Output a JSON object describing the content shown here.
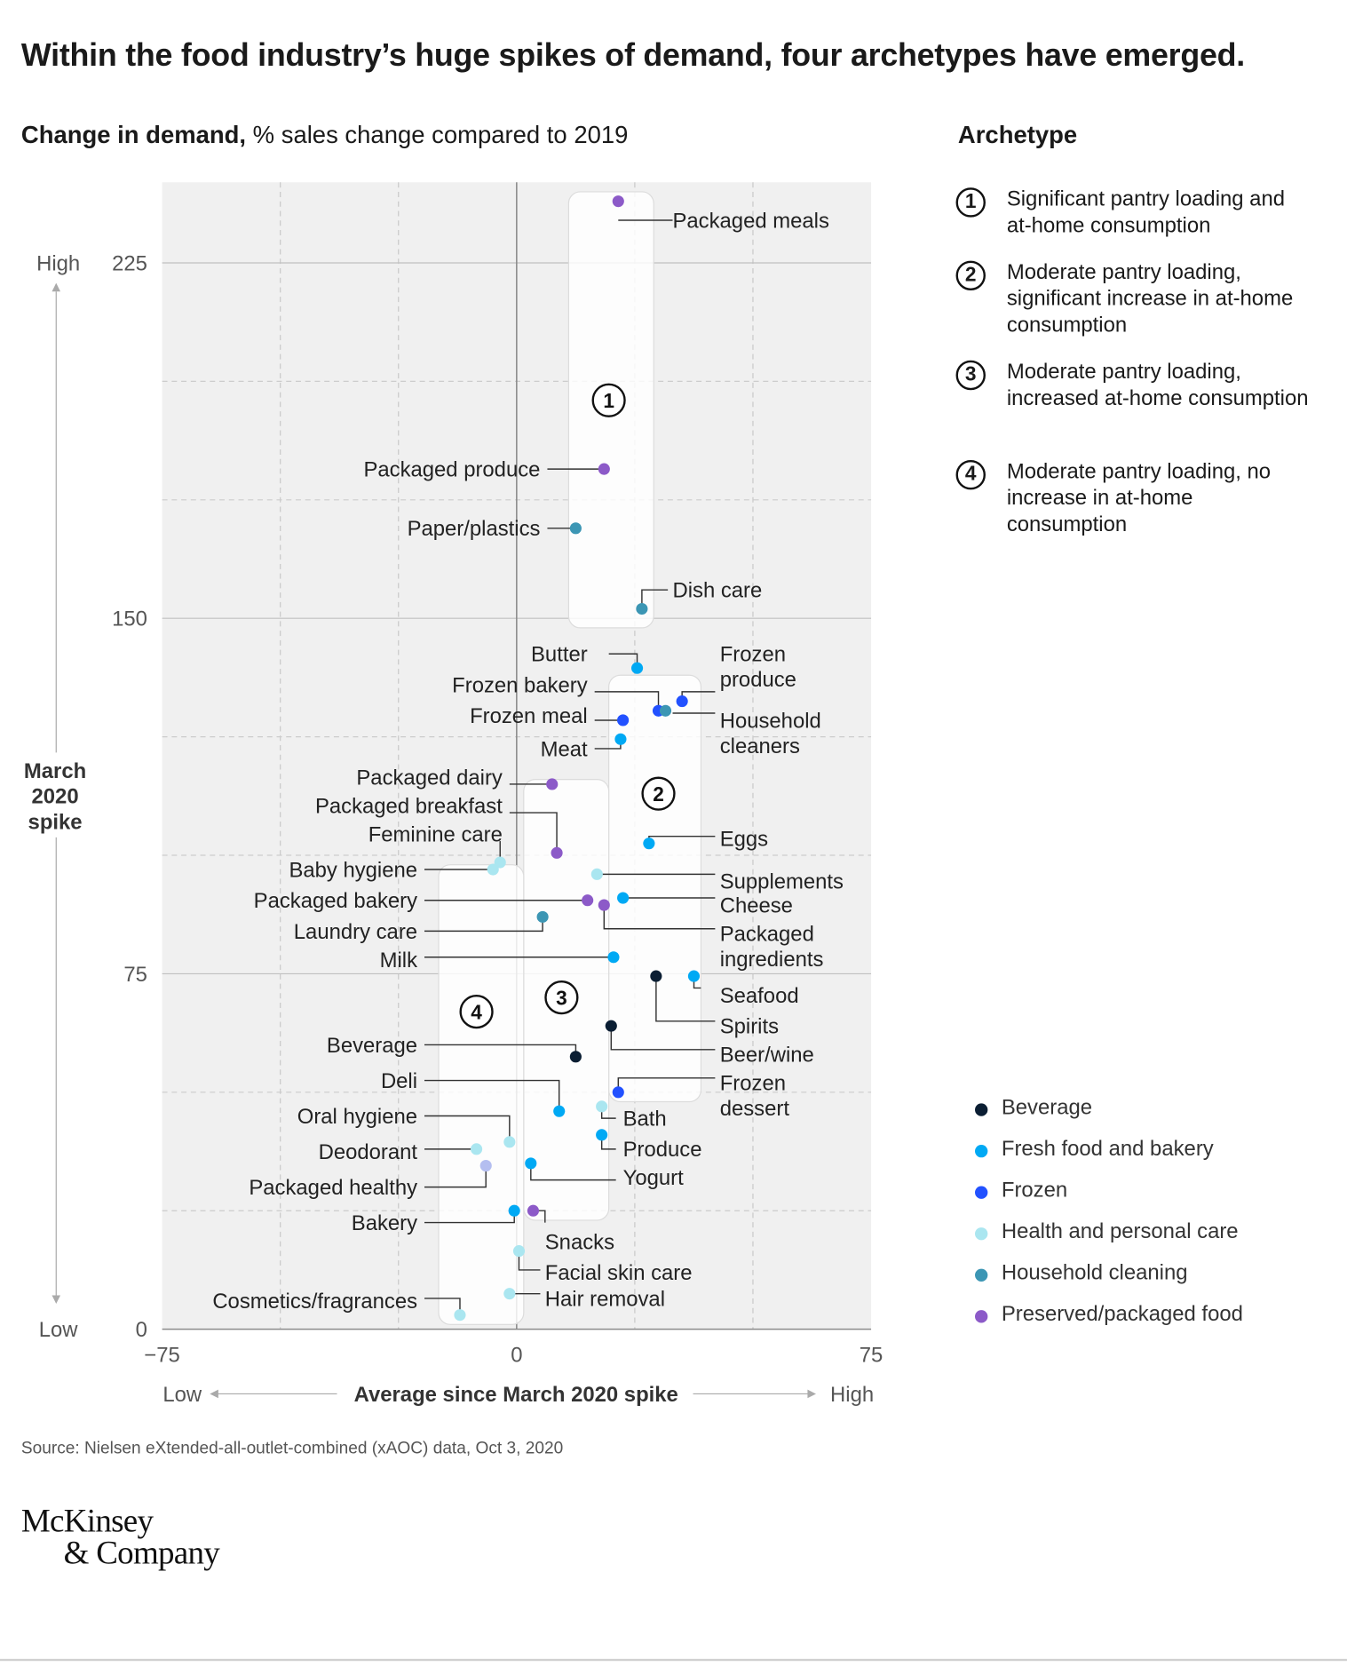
{
  "title": "Within the food industry’s huge spikes of demand, four archetypes have emerged.",
  "subtitle_bold": "Change in demand,",
  "subtitle_rest": " % sales change compared to 2019",
  "legend_archetype_title": "Archetype",
  "archetypes": [
    {
      "num": "1",
      "text": "Significant pantry loading and at-home consumption"
    },
    {
      "num": "2",
      "text": "Moderate pantry loading, significant increase in at-home consumption"
    },
    {
      "num": "3",
      "text": "Moderate pantry loading, increased at-home consumption"
    },
    {
      "num": "4",
      "text": "Moderate pantry loading, no increase in at-home consumption"
    }
  ],
  "categories": [
    {
      "name": "Beverage",
      "color": "#0b1e33"
    },
    {
      "name": "Fresh food and bakery",
      "color": "#00a9f4"
    },
    {
      "name": "Frozen",
      "color": "#2251ff"
    },
    {
      "name": "Health and personal care",
      "color": "#aae6f0"
    },
    {
      "name": "Household cleaning",
      "color": "#3c96b4"
    },
    {
      "name": "Preserved/packaged food",
      "color": "#8c5ac8"
    }
  ],
  "source": "Source: Nielsen eXtended-all-outlet-combined (xAOC) data, Oct 3, 2020",
  "logo_line1": "McKinsey",
  "logo_line2": "& Company",
  "chart_data": {
    "type": "scatter",
    "title": "Within the food industry’s huge spikes of demand, four archetypes have emerged.",
    "xlabel": "Average since March 2020 spike",
    "ylabel": "March 2020 spike",
    "x_low_label": "Low",
    "x_high_label": "High",
    "y_low_label": "Low",
    "y_high_label": "High",
    "xlim": [
      -75,
      75
    ],
    "ylim": [
      0,
      242
    ],
    "x_ticks": [
      -75,
      0,
      75
    ],
    "x_tick_labels": [
      "−75",
      "0",
      "75"
    ],
    "y_ticks": [
      0,
      75,
      150,
      225
    ],
    "y_tick_labels": [
      "0",
      "75",
      "150",
      "225"
    ],
    "grid": true,
    "legend": "right",
    "zones": [
      {
        "label": "1",
        "x0": 11,
        "x1": 29,
        "y0": 148,
        "y1": 240,
        "label_x": 19.5,
        "label_y": 196
      },
      {
        "label": "2",
        "x0": 19.5,
        "x1": 39,
        "y0": 48,
        "y1": 138,
        "label_x": 30,
        "label_y": 113
      },
      {
        "label": "3",
        "x0": 1.5,
        "x1": 19.5,
        "y0": 23,
        "y1": 116,
        "label_x": 9.5,
        "label_y": 70
      },
      {
        "label": "4",
        "x0": -16.5,
        "x1": 1.5,
        "y0": 1,
        "y1": 98,
        "label_x": -8.5,
        "label_y": 67
      }
    ],
    "points": [
      {
        "label": "Packaged meals",
        "x": 21.5,
        "y": 238,
        "cat": "Preserved/packaged food",
        "lx": 33,
        "ly": 234,
        "anchor": "start",
        "path": [
          [
            21.5,
            234
          ],
          [
            33,
            234
          ]
        ]
      },
      {
        "label": "Packaged produce",
        "x": 18.5,
        "y": 181.5,
        "cat": "Preserved/packaged food",
        "lx": 5,
        "ly": 181.5,
        "anchor": "end",
        "path": [
          [
            6.5,
            181.5
          ],
          [
            18.5,
            181.5
          ]
        ]
      },
      {
        "label": "Paper/plastics",
        "x": 12.5,
        "y": 169,
        "cat": "Household cleaning",
        "lx": 5,
        "ly": 169,
        "anchor": "end",
        "path": [
          [
            6.5,
            169
          ],
          [
            12.5,
            169
          ]
        ]
      },
      {
        "label": "Dish care",
        "x": 26.5,
        "y": 152,
        "cat": "Household cleaning",
        "lx": 33,
        "ly": 156,
        "anchor": "start",
        "path": [
          [
            26.5,
            152
          ],
          [
            26.5,
            156
          ],
          [
            32,
            156
          ]
        ]
      },
      {
        "label": "Butter",
        "x": 25.5,
        "y": 139.5,
        "cat": "Fresh food and bakery",
        "lx": 15,
        "ly": 142.5,
        "anchor": "end",
        "path": [
          [
            19.5,
            142.5
          ],
          [
            25.5,
            142.5
          ],
          [
            25.5,
            139.5
          ]
        ]
      },
      {
        "label": "Frozen produce",
        "x": 35,
        "y": 132.5,
        "cat": "Frozen",
        "lx": 43,
        "ly": 142.5,
        "anchor": "start",
        "path": [
          [
            35,
            132.5
          ],
          [
            35,
            134.5
          ],
          [
            42,
            134.5
          ]
        ]
      },
      {
        "label": "Frozen bakery",
        "x": 30,
        "y": 130.5,
        "cat": "Frozen",
        "lx": 15,
        "ly": 136,
        "anchor": "end",
        "path": [
          [
            16.5,
            134.5
          ],
          [
            30,
            134.5
          ],
          [
            30,
            130.5
          ]
        ]
      },
      {
        "label": "Household cleaners",
        "x": 31.5,
        "y": 130.5,
        "cat": "Household cleaning",
        "lx": 43,
        "ly": 128.5,
        "anchor": "start",
        "path": [
          [
            33,
            130
          ],
          [
            42,
            130
          ]
        ]
      },
      {
        "label": "Frozen meal",
        "x": 22.5,
        "y": 128.5,
        "cat": "Frozen",
        "lx": 15,
        "ly": 129.5,
        "anchor": "end",
        "path": [
          [
            16.5,
            128.5
          ],
          [
            22.5,
            128.5
          ]
        ]
      },
      {
        "label": "Meat",
        "x": 22,
        "y": 124.5,
        "cat": "Fresh food and bakery",
        "lx": 15,
        "ly": 122.5,
        "anchor": "end",
        "path": [
          [
            16.5,
            122.5
          ],
          [
            22,
            122.5
          ],
          [
            22,
            124.5
          ]
        ]
      },
      {
        "label": "Packaged dairy",
        "x": 7.5,
        "y": 115,
        "cat": "Preserved/packaged food",
        "lx": -3,
        "ly": 116.5,
        "anchor": "end",
        "path": [
          [
            -1.5,
            115
          ],
          [
            7.5,
            115
          ]
        ]
      },
      {
        "label": "Packaged breakfast",
        "x": 8.5,
        "y": 100.5,
        "cat": "Preserved/packaged food",
        "lx": -3,
        "ly": 110.5,
        "anchor": "end",
        "path": [
          [
            -1.5,
            109
          ],
          [
            2.5,
            109
          ],
          [
            2.5,
            109
          ],
          [
            8.5,
            109
          ],
          [
            8.5,
            100.5
          ]
        ]
      },
      {
        "label": "Eggs",
        "x": 28,
        "y": 102.5,
        "cat": "Fresh food and bakery",
        "lx": 43,
        "ly": 103.5,
        "anchor": "start",
        "path": [
          [
            28,
            102.5
          ],
          [
            28,
            104
          ],
          [
            42,
            104
          ]
        ]
      },
      {
        "label": "Feminine care",
        "x": -3.5,
        "y": 98.5,
        "cat": "Health and personal care",
        "lx": -3,
        "ly": 104.5,
        "anchor": "end",
        "path": [
          [
            -3.5,
            98.5
          ],
          [
            -3.5,
            103
          ]
        ]
      },
      {
        "label": "Baby hygiene",
        "x": -5,
        "y": 97,
        "cat": "Health and personal care",
        "lx": -21,
        "ly": 97,
        "anchor": "end",
        "path": [
          [
            -19.5,
            97
          ],
          [
            -5,
            97
          ]
        ]
      },
      {
        "label": "Supplements",
        "x": 17,
        "y": 96,
        "cat": "Health and personal care",
        "lx": 43,
        "ly": 94.5,
        "anchor": "start",
        "path": [
          [
            17,
            96
          ],
          [
            42,
            96
          ]
        ]
      },
      {
        "label": "Packaged bakery",
        "x": 15,
        "y": 90.5,
        "cat": "Preserved/packaged food",
        "lx": -21,
        "ly": 90.5,
        "anchor": "end",
        "path": [
          [
            -19.5,
            90.5
          ],
          [
            15,
            90.5
          ]
        ]
      },
      {
        "label": "Cheese",
        "x": 22.5,
        "y": 91,
        "cat": "Fresh food and bakery",
        "lx": 43,
        "ly": 89.5,
        "anchor": "start",
        "path": [
          [
            22.5,
            91
          ],
          [
            42,
            91
          ]
        ]
      },
      {
        "label": "Packaged ingredients",
        "x": 18.5,
        "y": 89.5,
        "cat": "Preserved/packaged food",
        "lx": 43,
        "ly": 83.5,
        "anchor": "start",
        "path": [
          [
            18.5,
            89.5
          ],
          [
            18.5,
            84.5
          ],
          [
            42,
            84.5
          ]
        ]
      },
      {
        "label": "Laundry care",
        "x": 5.5,
        "y": 87,
        "cat": "Household cleaning",
        "lx": -21,
        "ly": 84,
        "anchor": "end",
        "path": [
          [
            -19.5,
            84
          ],
          [
            5.5,
            84
          ],
          [
            5.5,
            87
          ]
        ]
      },
      {
        "label": "Milk",
        "x": 20.5,
        "y": 78.5,
        "cat": "Fresh food and bakery",
        "lx": -21,
        "ly": 78,
        "anchor": "end",
        "path": [
          [
            -19.5,
            78.5
          ],
          [
            20.5,
            78.5
          ]
        ]
      },
      {
        "label": "Spirits",
        "x": 29.5,
        "y": 74.5,
        "cat": "Beverage",
        "lx": 43,
        "ly": 64,
        "anchor": "start",
        "path": [
          [
            29.5,
            74.5
          ],
          [
            29.5,
            65
          ],
          [
            42,
            65
          ]
        ]
      },
      {
        "label": "Seafood",
        "x": 37.5,
        "y": 74.5,
        "cat": "Fresh food and bakery",
        "lx": 43,
        "ly": 70.5,
        "anchor": "start",
        "path": [
          [
            37.5,
            74.5
          ],
          [
            37.5,
            72
          ],
          [
            39,
            72
          ]
        ]
      },
      {
        "label": "Beer/wine",
        "x": 20,
        "y": 64,
        "cat": "Beverage",
        "lx": 43,
        "ly": 58,
        "anchor": "start",
        "path": [
          [
            20,
            64
          ],
          [
            20,
            59
          ],
          [
            42,
            59
          ]
        ]
      },
      {
        "label": "Beverage",
        "x": 12.5,
        "y": 57.5,
        "cat": "Beverage",
        "lx": -21,
        "ly": 60,
        "anchor": "end",
        "path": [
          [
            -19.5,
            60
          ],
          [
            12.5,
            60
          ],
          [
            12.5,
            57.5
          ]
        ]
      },
      {
        "label": "Deli",
        "x": 9,
        "y": 46,
        "cat": "Fresh food and bakery",
        "lx": -21,
        "ly": 52.5,
        "anchor": "end",
        "path": [
          [
            -19.5,
            52.5
          ],
          [
            9,
            52.5
          ],
          [
            9,
            46
          ]
        ]
      },
      {
        "label": "Frozen dessert",
        "x": 21.5,
        "y": 50,
        "cat": "Frozen",
        "lx": 43,
        "ly": 52,
        "anchor": "start",
        "path": [
          [
            21.5,
            50
          ],
          [
            21.5,
            53
          ],
          [
            42,
            53
          ]
        ]
      },
      {
        "label": "Bath",
        "x": 18,
        "y": 47,
        "cat": "Health and personal care",
        "lx": 22.5,
        "ly": 44.5,
        "anchor": "start",
        "path": [
          [
            18,
            47
          ],
          [
            18,
            44.5
          ],
          [
            21,
            44.5
          ]
        ]
      },
      {
        "label": "Oral hygiene",
        "x": -1.5,
        "y": 39.5,
        "cat": "Health and personal care",
        "lx": -21,
        "ly": 45,
        "anchor": "end",
        "path": [
          [
            -19.5,
            45
          ],
          [
            -1.5,
            45
          ],
          [
            -1.5,
            39.5
          ]
        ]
      },
      {
        "label": "Produce",
        "x": 18,
        "y": 41,
        "cat": "Fresh food and bakery",
        "lx": 22.5,
        "ly": 38,
        "anchor": "start",
        "path": [
          [
            18,
            41
          ],
          [
            18,
            38
          ],
          [
            21,
            38
          ]
        ]
      },
      {
        "label": "Deodorant",
        "x": -8.5,
        "y": 38,
        "cat": "Health and personal care",
        "lx": -21,
        "ly": 37.5,
        "anchor": "end",
        "path": [
          [
            -19.5,
            38
          ],
          [
            -8.5,
            38
          ]
        ]
      },
      {
        "label": "Packaged healthy",
        "x": -6.5,
        "y": 34.5,
        "cat": "Health and personal care",
        "lx": -21,
        "ly": 30,
        "anchor": "end",
        "path": [
          [
            -19.5,
            30
          ],
          [
            -6.5,
            30
          ],
          [
            -6.5,
            34.5
          ]
        ],
        "color_override": "#b4bef0"
      },
      {
        "label": "Yogurt",
        "x": 3,
        "y": 35,
        "cat": "Fresh food and bakery",
        "lx": 22.5,
        "ly": 32,
        "anchor": "start",
        "path": [
          [
            3,
            35
          ],
          [
            3,
            31.5
          ],
          [
            21,
            31.5
          ]
        ]
      },
      {
        "label": "Bakery",
        "x": -0.5,
        "y": 25,
        "cat": "Fresh food and bakery",
        "lx": -21,
        "ly": 22.5,
        "anchor": "end",
        "path": [
          [
            -19.5,
            22.5
          ],
          [
            -0.5,
            22.5
          ],
          [
            -0.5,
            25
          ]
        ]
      },
      {
        "label": "Snacks",
        "x": 3.5,
        "y": 25,
        "cat": "Preserved/packaged food",
        "lx": 6,
        "ly": 18.5,
        "anchor": "start",
        "path": [
          [
            3.5,
            25
          ],
          [
            6,
            25
          ],
          [
            6,
            22.5
          ]
        ]
      },
      {
        "label": "Facial skin care",
        "x": 0.5,
        "y": 16.5,
        "cat": "Health and personal care",
        "lx": 6,
        "ly": 12,
        "anchor": "start",
        "path": [
          [
            0.5,
            16.5
          ],
          [
            0.5,
            12.5
          ],
          [
            5,
            12.5
          ]
        ]
      },
      {
        "label": "Hair removal",
        "x": -1.5,
        "y": 7.5,
        "cat": "Health and personal care",
        "lx": 6,
        "ly": 6.5,
        "anchor": "start",
        "path": [
          [
            -1.5,
            7.5
          ],
          [
            5,
            7.5
          ]
        ]
      },
      {
        "label": "Cosmetics/fragrances",
        "x": -12,
        "y": 3,
        "cat": "Health and personal care",
        "lx": -21,
        "ly": 6,
        "anchor": "end",
        "path": [
          [
            -19.5,
            6.5
          ],
          [
            -12,
            6.5
          ],
          [
            -12,
            3
          ]
        ]
      }
    ]
  }
}
